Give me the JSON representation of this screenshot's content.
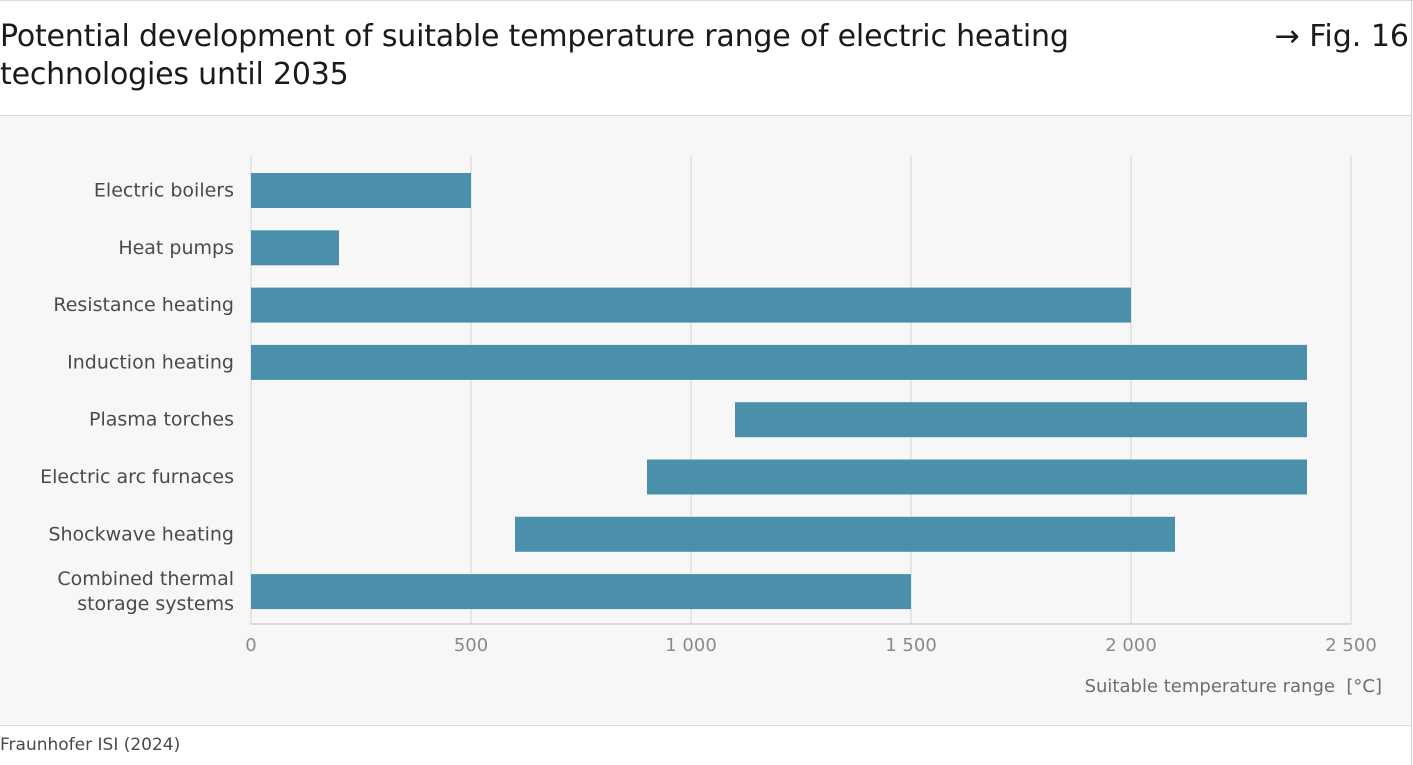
{
  "header": {
    "title": "Potential development of suitable temperature range of electric heating technologies until 2035",
    "fig_ref": "→ Fig. 16"
  },
  "footer": {
    "source": "Fraunhofer ISI (2024)"
  },
  "colors": {
    "bar": "#4a90aa",
    "grid": "#d6d6d6",
    "panel": "#f7f7f7"
  },
  "chart_data": {
    "type": "bar",
    "orientation": "horizontal",
    "xlabel": "Suitable temperature range  [°C]",
    "xlim": [
      0,
      2500
    ],
    "xticks": [
      0,
      500,
      1000,
      1500,
      2000,
      2500
    ],
    "xtick_labels": [
      "0",
      "500",
      "1 000",
      "1 500",
      "2 000",
      "2 500"
    ],
    "grid": true,
    "categories": [
      "Electric boilers",
      "Heat pumps",
      "Resistance heating",
      "Induction heating",
      "Plasma torches",
      "Electric arc furnaces",
      "Shockwave heating",
      "Combined thermal storage systems"
    ],
    "category_label_lines": [
      [
        "Electric boilers"
      ],
      [
        "Heat pumps"
      ],
      [
        "Resistance heating"
      ],
      [
        "Induction heating"
      ],
      [
        "Plasma torches"
      ],
      [
        "Electric arc furnaces"
      ],
      [
        "Shockwave heating"
      ],
      [
        "Combined thermal",
        "storage systems"
      ]
    ],
    "ranges": [
      [
        0,
        500
      ],
      [
        0,
        200
      ],
      [
        0,
        2000
      ],
      [
        0,
        2400
      ],
      [
        1100,
        2400
      ],
      [
        900,
        2400
      ],
      [
        600,
        2100
      ],
      [
        0,
        1500
      ]
    ]
  }
}
